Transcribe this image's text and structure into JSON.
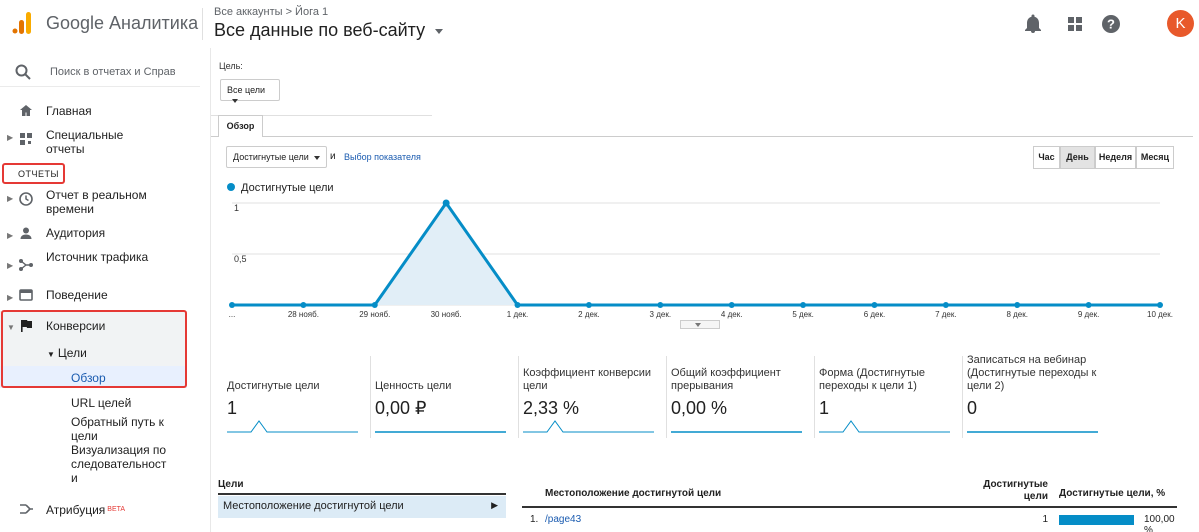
{
  "header": {
    "app_name": "Google Аналитика",
    "breadcrumb": "Все аккаунты > Йога 1",
    "view_name": "Все данные по веб-сайту",
    "avatar_letter": "K",
    "brand_colors": {
      "logo_orange": "#f9ab00",
      "logo_dark": "#e37400",
      "avatar": "#e8592b"
    },
    "icons": [
      "bell-icon",
      "apps-grid-icon",
      "help-icon"
    ]
  },
  "sidebar": {
    "search_placeholder": "Поиск в отчетах и Справке",
    "items": [
      {
        "label": "Главная",
        "icon": "home-icon"
      },
      {
        "label": "Специальные отчеты",
        "icon": "custom-reports-icon"
      },
      {
        "label": "ОТЧЕТЫ"
      },
      {
        "label": "Отчет в реальном времени",
        "icon": "clock-icon"
      },
      {
        "label": "Аудитория",
        "icon": "person-icon"
      },
      {
        "label": "Источник трафика",
        "icon": "acquisition-icon"
      },
      {
        "label": "Поведение",
        "icon": "behavior-icon"
      },
      {
        "label": "Конверсии",
        "icon": "flag-icon"
      }
    ],
    "goals_label": "Цели",
    "goal_subitems": [
      "Обзор",
      "URL целей",
      "Обратный путь к цели",
      "Визуализация последовательности"
    ],
    "attribution_label": "Атрибуция",
    "beta_badge": "BETA",
    "highlight_color": "#e53935"
  },
  "main": {
    "goal_label": "Цель:",
    "goal_select": "Все цели",
    "tab_overview": "Обзор",
    "metric_select": "Достигнутые цели",
    "and_text": "и",
    "metric_link": "Выбор показателя",
    "periods": [
      "Час",
      "День",
      "Неделя",
      "Месяц"
    ],
    "active_period": "День"
  },
  "chart_data": {
    "type": "area",
    "series": [
      {
        "name": "Достигнутые цели",
        "values": [
          0,
          0,
          0,
          1,
          0,
          0,
          0,
          0,
          0,
          0,
          0,
          0,
          0,
          0
        ]
      }
    ],
    "x": [
      "...",
      "28 нояб.",
      "29 нояб.",
      "30 нояб.",
      "1 дек.",
      "2 дек.",
      "3 дек.",
      "4 дек.",
      "5 дек.",
      "6 дек.",
      "7 дек.",
      "8 дек.",
      "9 дек.",
      "10 дек."
    ],
    "y_ticks": [
      "1",
      "0,5"
    ],
    "ylim": [
      0,
      1
    ],
    "grid": true,
    "color": "#058dc7",
    "fill_color": "#e1eef7"
  },
  "scorecards": [
    {
      "name": "Достигнутые цели",
      "value": "1",
      "spark": "peak"
    },
    {
      "name": "Ценность цели",
      "value": "0,00 ₽",
      "spark": "flat"
    },
    {
      "name": "Коэффициент конверсии цели",
      "value": "2,33 %",
      "spark": "peak"
    },
    {
      "name": "Общий коэффициент прерывания",
      "value": "0,00 %",
      "spark": "flat"
    },
    {
      "name": "Форма (Достигнутые переходы к цели 1)",
      "value": "1",
      "spark": "peak"
    },
    {
      "name": "Записаться на вебинар (Достигнутые переходы к цели 2)",
      "value": "0",
      "spark": "flat"
    }
  ],
  "table": {
    "left_header": "Цели",
    "left_row": "Местоположение достигнутой цели",
    "col_location": "Местоположение достигнутой цели",
    "col_completions": "Достигнутые цели",
    "col_percent": "Достигнутые цели, %",
    "rows": [
      {
        "index": "1.",
        "page": "/page43",
        "completions": "1",
        "percent": "100,00 %",
        "share": 1.0
      }
    ]
  }
}
